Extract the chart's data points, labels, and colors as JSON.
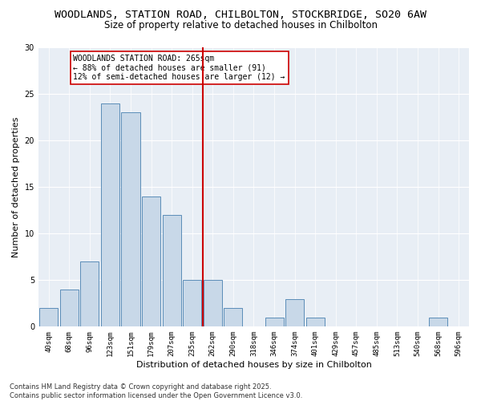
{
  "title_line1": "WOODLANDS, STATION ROAD, CHILBOLTON, STOCKBRIDGE, SO20 6AW",
  "title_line2": "Size of property relative to detached houses in Chilbolton",
  "xlabel": "Distribution of detached houses by size in Chilbolton",
  "ylabel": "Number of detached properties",
  "categories": [
    "40sqm",
    "68sqm",
    "96sqm",
    "123sqm",
    "151sqm",
    "179sqm",
    "207sqm",
    "235sqm",
    "262sqm",
    "290sqm",
    "318sqm",
    "346sqm",
    "374sqm",
    "401sqm",
    "429sqm",
    "457sqm",
    "485sqm",
    "513sqm",
    "540sqm",
    "568sqm",
    "596sqm"
  ],
  "values": [
    2,
    4,
    7,
    24,
    23,
    14,
    12,
    5,
    5,
    2,
    0,
    1,
    3,
    1,
    0,
    0,
    0,
    0,
    0,
    1,
    0
  ],
  "bar_color": "#c8d8e8",
  "bar_edge_color": "#5b8db8",
  "vline_index": 8,
  "vline_color": "#cc0000",
  "annotation_text": "WOODLANDS STATION ROAD: 265sqm\n← 88% of detached houses are smaller (91)\n12% of semi-detached houses are larger (12) →",
  "annotation_box_color": "#ffffff",
  "annotation_box_edge": "#cc0000",
  "ylim": [
    0,
    30
  ],
  "yticks": [
    0,
    5,
    10,
    15,
    20,
    25,
    30
  ],
  "background_color": "#e8eef5",
  "footer_text": "Contains HM Land Registry data © Crown copyright and database right 2025.\nContains public sector information licensed under the Open Government Licence v3.0.",
  "title_fontsize": 9.5,
  "subtitle_fontsize": 8.5,
  "axis_label_fontsize": 8,
  "tick_fontsize": 6.5,
  "annotation_fontsize": 7,
  "footer_fontsize": 6
}
